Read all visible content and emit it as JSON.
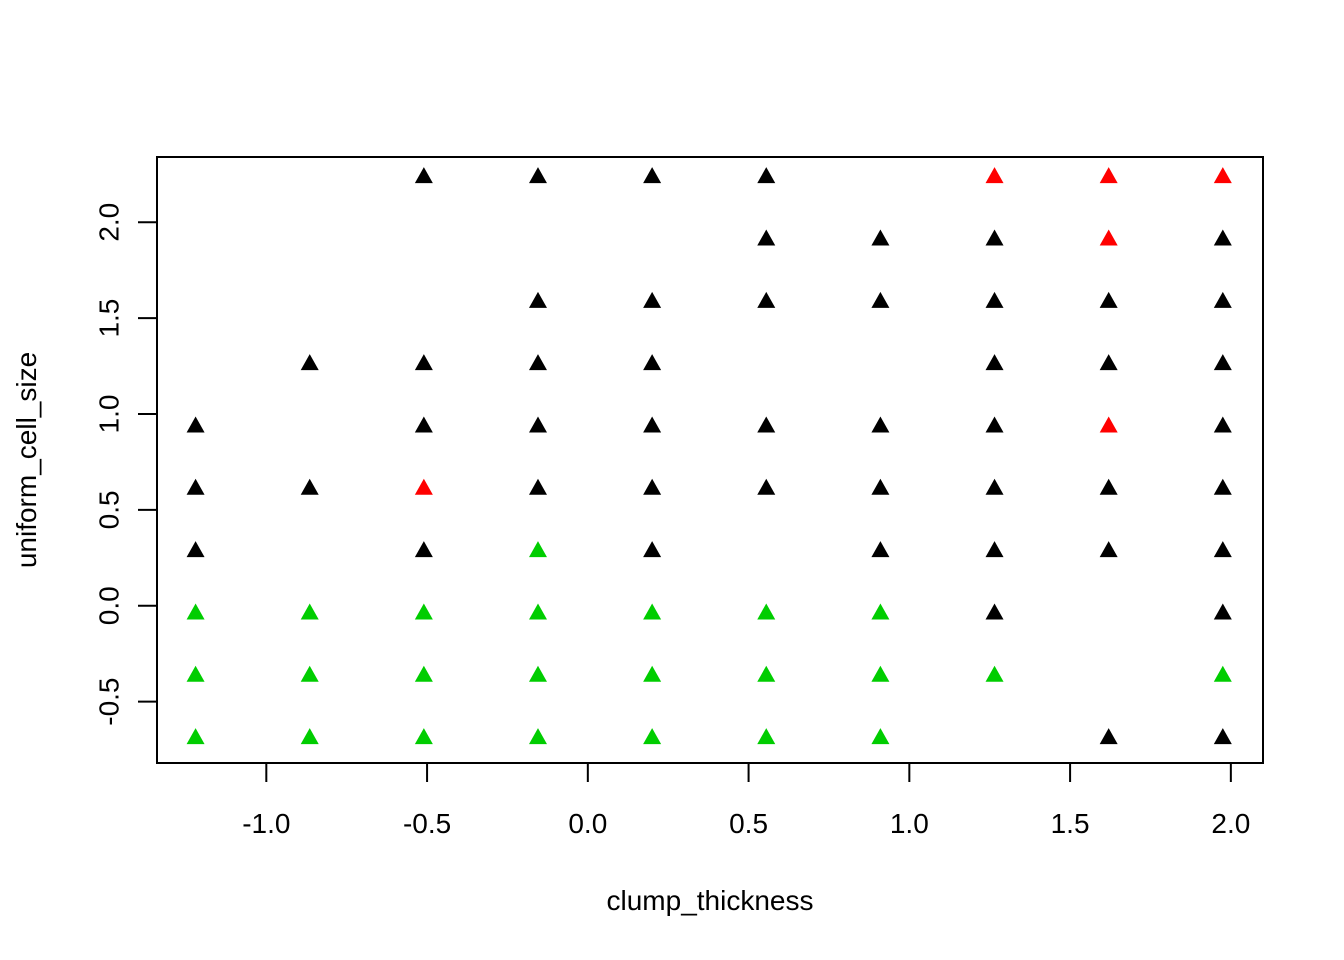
{
  "chart_data": {
    "type": "scatter",
    "xlabel": "clump_thickness",
    "ylabel": "uniform_cell_size",
    "xlim": [
      -1.34,
      2.1
    ],
    "ylim": [
      -0.82,
      2.34
    ],
    "grid": false,
    "legend": "none",
    "marker": "filled-triangle",
    "x_ticks": [
      -1.0,
      -0.5,
      0.0,
      0.5,
      1.0,
      1.5,
      2.0
    ],
    "x_tick_labels": [
      "-1.0",
      "-0.5",
      "0.0",
      "0.5",
      "1.0",
      "1.5",
      "2.0"
    ],
    "y_ticks": [
      -0.5,
      0.0,
      0.5,
      1.0,
      1.5,
      2.0
    ],
    "y_tick_labels": [
      "-0.5",
      "0.0",
      "0.5",
      "1.0",
      "1.5",
      "2.0"
    ],
    "colors": {
      "black": "#000000",
      "green": "#00cd00",
      "red": "#ff0000"
    },
    "series": [
      {
        "color": "#000000",
        "points": [
          [
            -0.51,
            2.24
          ],
          [
            -0.155,
            2.24
          ],
          [
            0.2,
            2.24
          ],
          [
            0.555,
            2.24
          ],
          [
            0.555,
            1.915
          ],
          [
            0.91,
            1.915
          ],
          [
            1.265,
            1.915
          ],
          [
            1.975,
            1.915
          ],
          [
            -0.155,
            1.59
          ],
          [
            0.2,
            1.59
          ],
          [
            0.555,
            1.59
          ],
          [
            0.91,
            1.59
          ],
          [
            1.265,
            1.59
          ],
          [
            1.62,
            1.59
          ],
          [
            1.975,
            1.59
          ],
          [
            -0.865,
            1.265
          ],
          [
            -0.51,
            1.265
          ],
          [
            -0.155,
            1.265
          ],
          [
            0.2,
            1.265
          ],
          [
            1.265,
            1.265
          ],
          [
            1.62,
            1.265
          ],
          [
            1.975,
            1.265
          ],
          [
            -1.22,
            0.94
          ],
          [
            -0.51,
            0.94
          ],
          [
            -0.155,
            0.94
          ],
          [
            0.2,
            0.94
          ],
          [
            0.555,
            0.94
          ],
          [
            0.91,
            0.94
          ],
          [
            1.265,
            0.94
          ],
          [
            1.975,
            0.94
          ],
          [
            -1.22,
            0.615
          ],
          [
            -0.865,
            0.615
          ],
          [
            -0.155,
            0.615
          ],
          [
            0.2,
            0.615
          ],
          [
            0.555,
            0.615
          ],
          [
            0.91,
            0.615
          ],
          [
            1.265,
            0.615
          ],
          [
            1.62,
            0.615
          ],
          [
            1.975,
            0.615
          ],
          [
            -1.22,
            0.29
          ],
          [
            -0.51,
            0.29
          ],
          [
            0.2,
            0.29
          ],
          [
            0.91,
            0.29
          ],
          [
            1.265,
            0.29
          ],
          [
            1.62,
            0.29
          ],
          [
            1.975,
            0.29
          ],
          [
            1.265,
            -0.035
          ],
          [
            1.975,
            -0.035
          ],
          [
            1.62,
            -0.685
          ],
          [
            1.975,
            -0.685
          ]
        ]
      },
      {
        "color": "#00cd00",
        "points": [
          [
            -0.155,
            0.29
          ],
          [
            -1.22,
            -0.035
          ],
          [
            -0.865,
            -0.035
          ],
          [
            -0.51,
            -0.035
          ],
          [
            -0.155,
            -0.035
          ],
          [
            0.2,
            -0.035
          ],
          [
            0.555,
            -0.035
          ],
          [
            0.91,
            -0.035
          ],
          [
            -1.22,
            -0.36
          ],
          [
            -0.865,
            -0.36
          ],
          [
            -0.51,
            -0.36
          ],
          [
            -0.155,
            -0.36
          ],
          [
            0.2,
            -0.36
          ],
          [
            0.555,
            -0.36
          ],
          [
            0.91,
            -0.36
          ],
          [
            1.265,
            -0.36
          ],
          [
            1.975,
            -0.36
          ],
          [
            -1.22,
            -0.685
          ],
          [
            -0.865,
            -0.685
          ],
          [
            -0.51,
            -0.685
          ],
          [
            -0.155,
            -0.685
          ],
          [
            0.2,
            -0.685
          ],
          [
            0.555,
            -0.685
          ],
          [
            0.91,
            -0.685
          ]
        ]
      },
      {
        "color": "#ff0000",
        "points": [
          [
            1.265,
            2.24
          ],
          [
            1.62,
            2.24
          ],
          [
            1.975,
            2.24
          ],
          [
            1.62,
            1.915
          ],
          [
            1.62,
            0.94
          ],
          [
            -0.51,
            0.615
          ]
        ]
      }
    ]
  }
}
